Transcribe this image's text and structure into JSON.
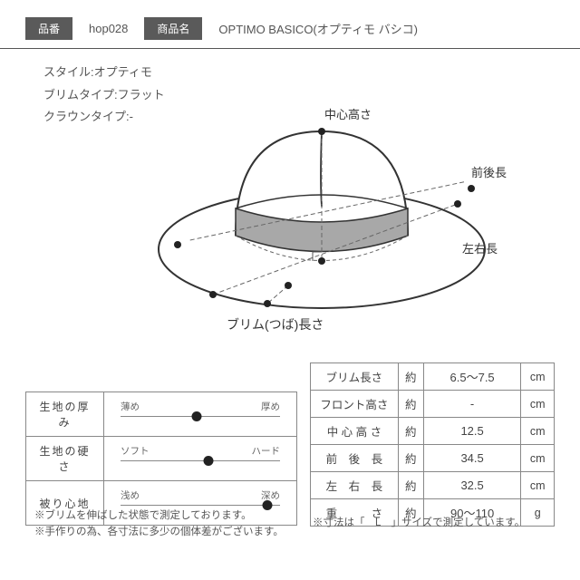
{
  "header": {
    "sku_label": "品番",
    "sku_value": "hop028",
    "name_label": "商品名",
    "name_value": "OPTIMO BASICO(オプティモ バシコ)"
  },
  "specs": {
    "style": "スタイル:オプティモ",
    "brim_type": "ブリムタイプ:フラット",
    "crown_type": "クラウンタイプ:-"
  },
  "diagram": {
    "labels": {
      "center_height": "中心高さ",
      "front_back": "前後長",
      "left_right": "左右長",
      "brim_length": "ブリム(つば)長さ"
    },
    "colors": {
      "outline": "#333333",
      "band": "#a8a8a8",
      "dash": "#666666",
      "dot": "#222222"
    }
  },
  "sliders": {
    "rows": [
      {
        "label": "生地の厚み",
        "left": "薄め",
        "right": "厚め",
        "pos": 0.48
      },
      {
        "label": "生地の硬さ",
        "left": "ソフト",
        "right": "ハード",
        "pos": 0.55
      },
      {
        "label": "被り心地",
        "left": "浅め",
        "right": "深め",
        "pos": 0.92
      }
    ]
  },
  "dimensions": {
    "approx": "約",
    "rows": [
      {
        "name": "ブリム長さ",
        "value": "6.5～7.5",
        "unit": "cm"
      },
      {
        "name": "フロント高さ",
        "value": "-",
        "unit": "cm"
      },
      {
        "name": "中 心 高 さ",
        "value": "12.5",
        "unit": "cm"
      },
      {
        "name": "前　後　長",
        "value": "34.5",
        "unit": "cm"
      },
      {
        "name": "左　右　長",
        "value": "32.5",
        "unit": "cm"
      },
      {
        "name": "重　　　さ",
        "value": "90～110",
        "unit": "g"
      }
    ]
  },
  "notes": {
    "left1": "※ブリムを伸ばした状態で測定しております。",
    "left2": "※手作りの為、各寸法に多少の個体差がございます。",
    "right": "※寸法は「　L　」サイズで測定しています。"
  }
}
